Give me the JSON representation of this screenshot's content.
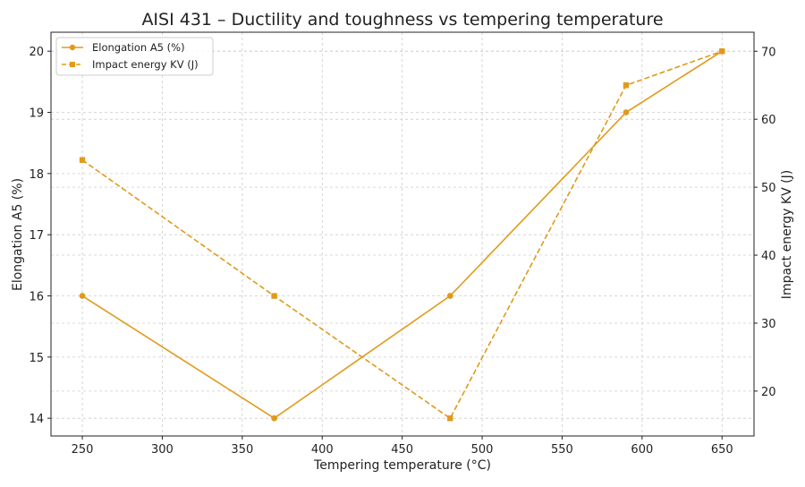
{
  "chart_data": {
    "type": "line",
    "title": "AISI 431 – Ductility and toughness vs tempering temperature",
    "xlabel": "Tempering temperature (°C)",
    "ylabel": "Elongation A5 (%)",
    "y2label": "Impact energy KV (J)",
    "x": [
      250,
      370,
      480,
      590,
      650
    ],
    "xlim": [
      230.4,
      670
    ],
    "ylim": [
      13.71,
      20.31
    ],
    "y2lim": [
      13.4,
      72.8
    ],
    "xticks": [
      250,
      300,
      350,
      400,
      450,
      500,
      550,
      600,
      650
    ],
    "yticks": [
      14,
      15,
      16,
      17,
      18,
      19,
      20
    ],
    "y2ticks": [
      20,
      30,
      40,
      50,
      60,
      70
    ],
    "grid": true,
    "legend_position": "top-left",
    "series": [
      {
        "name": "Elongation A5 (%)",
        "axis": "left",
        "values": [
          16,
          14,
          16,
          19,
          20
        ],
        "color": "#E09A1B",
        "style": "solid",
        "marker": "circle"
      },
      {
        "name": "Impact energy KV (J)",
        "axis": "right",
        "values": [
          54,
          34,
          16,
          65,
          70
        ],
        "color": "#E09A1B",
        "style": "dashed",
        "marker": "square"
      }
    ]
  }
}
